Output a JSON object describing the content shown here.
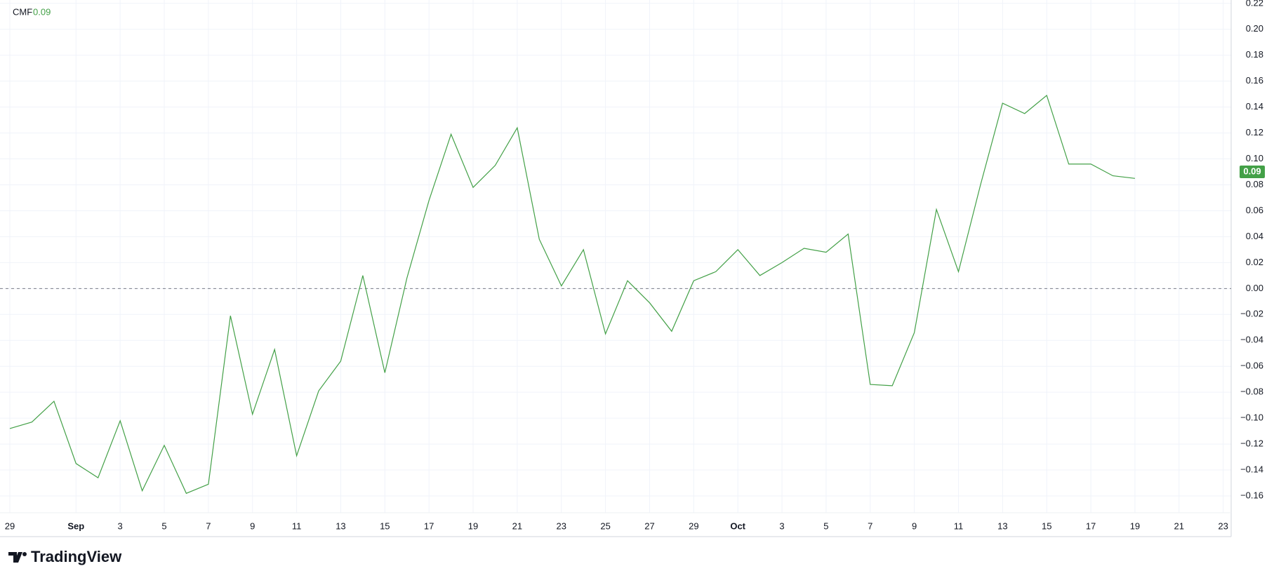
{
  "chart_data": {
    "type": "line",
    "indicator": "CMF",
    "current_value": 0.09,
    "categories": [
      "29",
      null,
      null,
      "Sep",
      null,
      "3",
      null,
      "5",
      null,
      "7",
      null,
      "9",
      null,
      "11",
      null,
      "13",
      null,
      "15",
      null,
      "17",
      null,
      "19",
      null,
      "21",
      null,
      "23",
      null,
      "25",
      null,
      "27",
      null,
      "29",
      null,
      "Oct",
      null,
      "3",
      null,
      "5",
      null,
      "7",
      null,
      "9",
      null,
      "11",
      null,
      "13",
      null,
      "15",
      null,
      "17",
      null,
      "19",
      null,
      "21",
      null,
      "23"
    ],
    "series": [
      {
        "name": "CMF",
        "color": "#43a047",
        "values": [
          -0.108,
          -0.103,
          -0.087,
          -0.135,
          -0.146,
          -0.102,
          -0.156,
          -0.121,
          -0.158,
          -0.151,
          -0.021,
          -0.097,
          -0.047,
          -0.129,
          -0.079,
          -0.056,
          0.01,
          -0.065,
          0.008,
          0.068,
          0.119,
          0.078,
          0.095,
          0.124,
          0.038,
          0.002,
          0.03,
          -0.035,
          0.006,
          -0.011,
          -0.033,
          0.006,
          0.013,
          0.03,
          0.01,
          0.02,
          0.031,
          0.028,
          0.042,
          -0.074,
          -0.075,
          -0.034,
          0.061,
          0.013,
          0.08,
          0.143,
          0.135,
          0.149,
          0.096,
          0.096,
          0.087,
          0.085,
          null,
          null,
          null,
          null
        ]
      }
    ],
    "ylim": [
      -0.173,
      0.2226
    ],
    "yticks": [
      {
        "value": -0.16,
        "label": "−0.16"
      },
      {
        "value": -0.14,
        "label": "−0.14"
      },
      {
        "value": -0.12,
        "label": "−0.12"
      },
      {
        "value": -0.1,
        "label": "−0.10"
      },
      {
        "value": -0.08,
        "label": "−0.08"
      },
      {
        "value": -0.06,
        "label": "−0.06"
      },
      {
        "value": -0.04,
        "label": "−0.04"
      },
      {
        "value": -0.02,
        "label": "−0.02"
      },
      {
        "value": 0,
        "label": "0.00"
      },
      {
        "value": 0.02,
        "label": "0.02"
      },
      {
        "value": 0.04,
        "label": "0.04"
      },
      {
        "value": 0.06,
        "label": "0.06"
      },
      {
        "value": 0.08,
        "label": "0.08"
      },
      {
        "value": 0.1,
        "label": "0.10"
      },
      {
        "value": 0.12,
        "label": "0.12"
      },
      {
        "value": 0.14,
        "label": "0.14"
      },
      {
        "value": 0.16,
        "label": "0.16"
      },
      {
        "value": 0.18,
        "label": "0.18"
      },
      {
        "value": 0.2,
        "label": "0.20"
      },
      {
        "value": 0.22,
        "label": "0.22"
      }
    ],
    "zero_line": 0,
    "grid": true
  },
  "branding": "TradingView"
}
